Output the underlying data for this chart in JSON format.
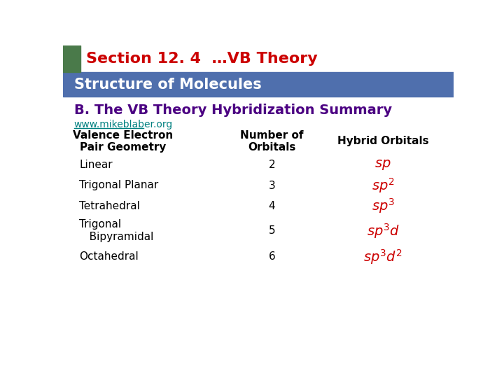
{
  "header1_text": "Section 12. 4  …VB Theory",
  "header1_color": "#cc0000",
  "header1_bg": "#ffffff",
  "green_rect_color": "#4a7a4a",
  "header2_text": "Structure of Molecules",
  "header2_color": "#ffffff",
  "header2_bg": "#4f6fad",
  "subtitle": "B. The VB Theory Hybridization Summary",
  "subtitle_color": "#4b0082",
  "link_text": "www.mikeblaber.org",
  "link_color": "#008080",
  "col1_header": "Valence Electron\nPair Geometry",
  "col2_header": "Number of\nOrbitals",
  "col3_header": "Hybrid Orbitals",
  "header_color": "#000000",
  "rows": [
    {
      "geo": "Linear",
      "num": "2"
    },
    {
      "geo": "Trigonal Planar",
      "num": "3"
    },
    {
      "geo": "Tetrahedral",
      "num": "4"
    },
    {
      "geo": "Trigonal\n   Bipyramidal",
      "num": "5"
    },
    {
      "geo": "Octahedral",
      "num": "6"
    }
  ],
  "hybrid_texts": [
    "$\\mathit{sp}$",
    "$\\mathit{sp}^2$",
    "$\\mathit{sp}^3$",
    "$\\mathit{sp}^3\\mathit{d}$",
    "$\\mathit{sp}^3\\mathit{d}^2$"
  ],
  "geo_color": "#000000",
  "num_color": "#000000",
  "hybrid_color": "#cc0000",
  "bg_color": "#ffffff"
}
